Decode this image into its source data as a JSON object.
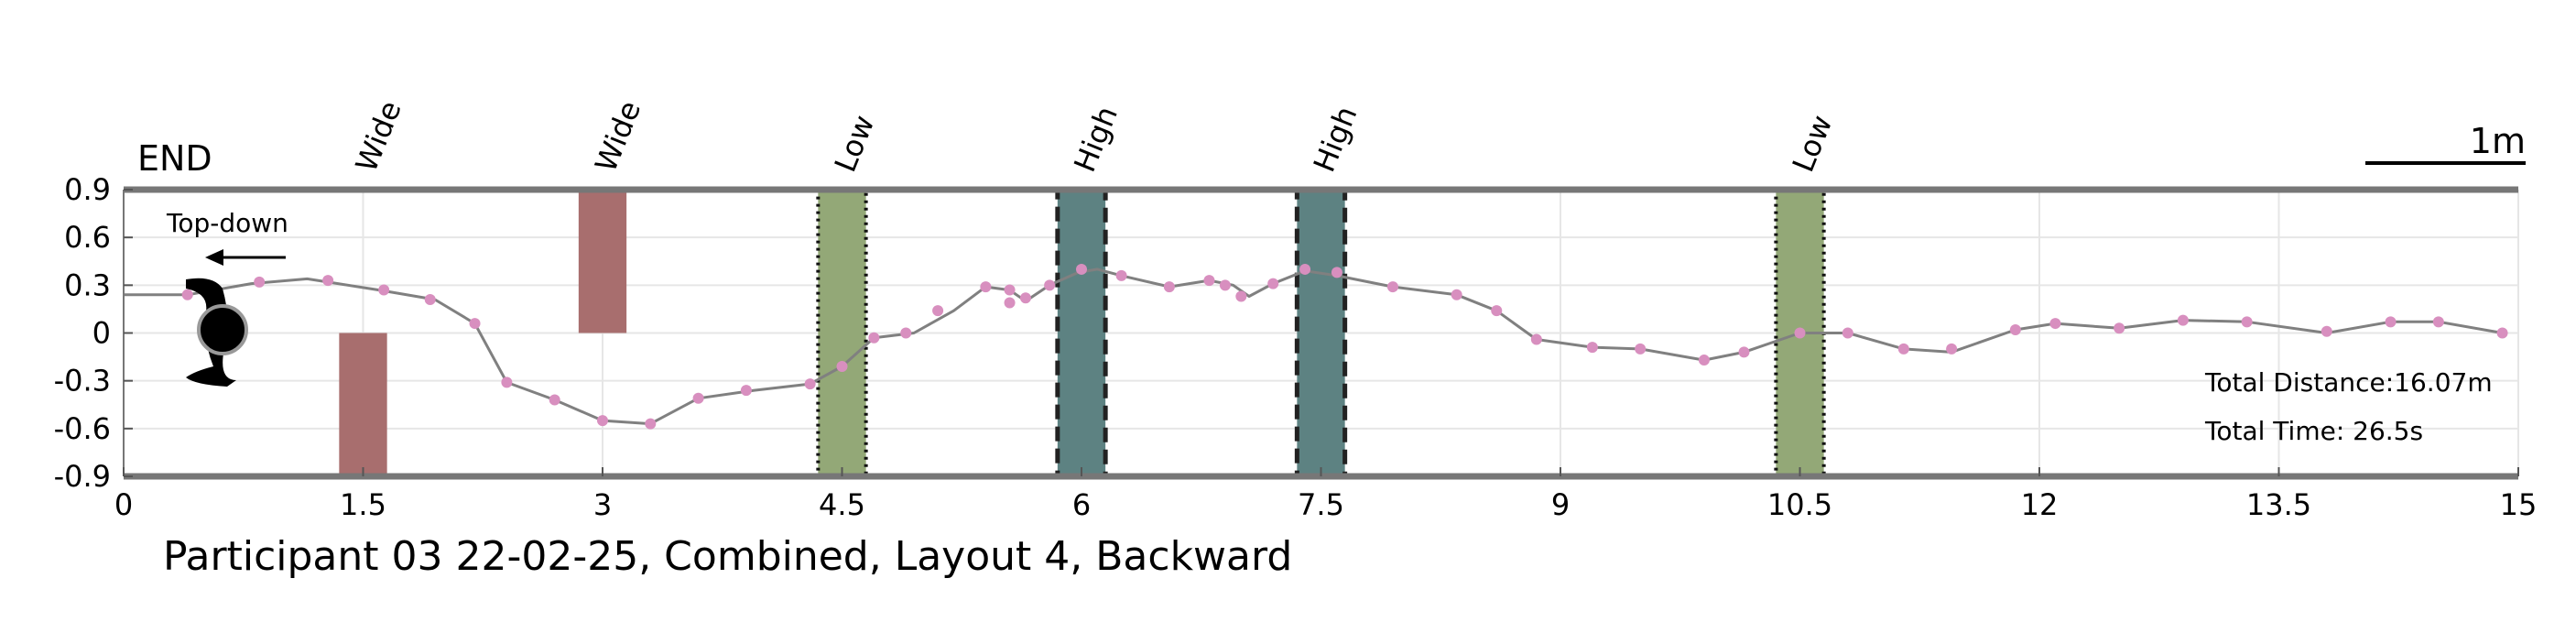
{
  "chart_data": {
    "type": "line",
    "title": "Participant 03 22-02-25, Combined, Layout 4, Backward",
    "xlim": [
      0,
      15
    ],
    "ylim": [
      -0.9,
      0.9
    ],
    "xticks": [
      "0",
      "1.5",
      "3",
      "4.5",
      "6",
      "7.5",
      "9",
      "10.5",
      "12",
      "13.5",
      "15"
    ],
    "yticks": [
      "0.9",
      "0.6",
      "0.3",
      "0",
      "-0.3",
      "-0.6",
      "-0.9"
    ],
    "grid": true,
    "end_label": "END",
    "view_label": "Top-down",
    "scale_label": "1m",
    "total_distance": "Total Distance:16.07m",
    "total_time": "Total Time: 26.5s",
    "obstacles": [
      {
        "label": "Wide",
        "x0": 1.35,
        "x1": 1.65,
        "y0": -0.9,
        "y1": 0.0,
        "kind": "wide",
        "color": "#a86e6e"
      },
      {
        "label": "Wide",
        "x0": 2.85,
        "x1": 3.15,
        "y0": 0.0,
        "y1": 0.9,
        "kind": "wide",
        "color": "#a86e6e"
      },
      {
        "label": "Low",
        "x0": 4.35,
        "x1": 4.65,
        "y0": -0.9,
        "y1": 0.9,
        "kind": "low",
        "color": "#93a877"
      },
      {
        "label": "High",
        "x0": 5.85,
        "x1": 6.15,
        "y0": -0.9,
        "y1": 0.9,
        "kind": "high",
        "color": "#5d8282"
      },
      {
        "label": "High",
        "x0": 7.35,
        "x1": 7.65,
        "y0": -0.9,
        "y1": 0.9,
        "kind": "high",
        "color": "#5d8282"
      },
      {
        "label": "Low",
        "x0": 10.35,
        "x1": 10.65,
        "y0": -0.9,
        "y1": 0.9,
        "kind": "low",
        "color": "#93a877"
      }
    ],
    "series": [
      {
        "color": "#808080",
        "x": [
          0,
          0.4,
          0.8,
          1.15,
          1.6,
          1.95,
          2.2,
          2.4,
          2.7,
          3.0,
          3.3,
          3.6,
          3.95,
          4.3,
          4.5,
          4.7,
          4.95,
          5.2,
          5.4,
          5.55,
          5.65,
          5.8,
          5.98,
          6.1,
          6.25,
          6.55,
          6.8,
          6.95,
          7.05,
          7.2,
          7.4,
          7.6,
          7.95,
          8.35,
          8.6,
          8.85,
          9.2,
          9.5,
          9.9,
          10.15,
          10.5,
          10.8,
          11.15,
          11.45,
          11.85,
          12.1,
          12.5,
          12.9,
          13.3,
          13.8,
          14.2,
          14.5,
          14.9
        ],
        "y": [
          0.24,
          0.24,
          0.31,
          0.34,
          0.27,
          0.21,
          0.06,
          -0.31,
          -0.42,
          -0.55,
          -0.57,
          -0.41,
          -0.36,
          -0.32,
          -0.21,
          -0.03,
          0.0,
          0.14,
          0.29,
          0.27,
          0.2,
          0.3,
          0.38,
          0.4,
          0.36,
          0.29,
          0.33,
          0.3,
          0.23,
          0.31,
          0.39,
          0.36,
          0.29,
          0.24,
          0.14,
          -0.04,
          -0.09,
          -0.1,
          -0.17,
          -0.12,
          0.0,
          0.0,
          -0.1,
          -0.12,
          0.02,
          0.06,
          0.03,
          0.08,
          0.07,
          0.0,
          0.07,
          0.07,
          0.0
        ],
        "markers": [
          [
            0.4,
            0.24
          ],
          [
            0.55,
            0.24
          ],
          [
            0.85,
            0.32
          ],
          [
            1.28,
            0.33
          ],
          [
            1.63,
            0.27
          ],
          [
            1.92,
            0.21
          ],
          [
            2.2,
            0.06
          ],
          [
            2.4,
            -0.31
          ],
          [
            2.7,
            -0.42
          ],
          [
            3.0,
            -0.55
          ],
          [
            3.3,
            -0.57
          ],
          [
            3.6,
            -0.41
          ],
          [
            3.9,
            -0.36
          ],
          [
            4.3,
            -0.32
          ],
          [
            4.5,
            -0.21
          ],
          [
            4.7,
            -0.03
          ],
          [
            4.9,
            0.0
          ],
          [
            5.1,
            0.14
          ],
          [
            5.4,
            0.29
          ],
          [
            5.55,
            0.27
          ],
          [
            5.55,
            0.19
          ],
          [
            5.65,
            0.22
          ],
          [
            5.8,
            0.3
          ],
          [
            6.0,
            0.4
          ],
          [
            6.25,
            0.36
          ],
          [
            6.55,
            0.29
          ],
          [
            6.8,
            0.33
          ],
          [
            6.9,
            0.3
          ],
          [
            7.0,
            0.23
          ],
          [
            7.2,
            0.31
          ],
          [
            7.4,
            0.4
          ],
          [
            7.6,
            0.38
          ],
          [
            7.95,
            0.29
          ],
          [
            8.35,
            0.24
          ],
          [
            8.6,
            0.14
          ],
          [
            8.85,
            -0.04
          ],
          [
            9.2,
            -0.09
          ],
          [
            9.5,
            -0.1
          ],
          [
            9.9,
            -0.17
          ],
          [
            10.15,
            -0.12
          ],
          [
            10.5,
            0.0
          ],
          [
            10.8,
            0.0
          ],
          [
            11.15,
            -0.1
          ],
          [
            11.45,
            -0.1
          ],
          [
            11.85,
            0.02
          ],
          [
            12.1,
            0.06
          ],
          [
            12.5,
            0.03
          ],
          [
            12.9,
            0.08
          ],
          [
            13.3,
            0.07
          ],
          [
            13.8,
            0.01
          ],
          [
            14.2,
            0.07
          ],
          [
            14.5,
            0.07
          ],
          [
            14.9,
            0.0
          ]
        ],
        "marker_color": "#d88fbf"
      }
    ]
  }
}
